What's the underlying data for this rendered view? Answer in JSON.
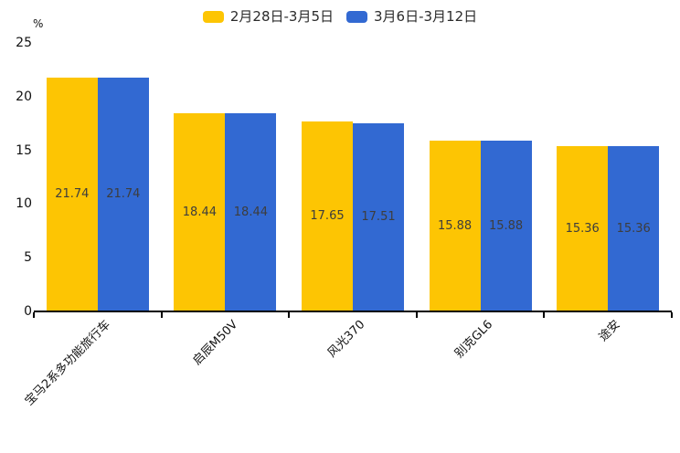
{
  "chart": {
    "unit_label": "%"
  },
  "chart_data": {
    "type": "bar",
    "title": "",
    "categories": [
      "宝马2系多功能旅行车",
      "启辰M50V",
      "风光370",
      "别克GL6",
      "途安"
    ],
    "series": [
      {
        "name": "2月28日-3月5日",
        "color": "#FDC503",
        "values": [
          21.74,
          18.44,
          17.65,
          15.88,
          15.36
        ]
      },
      {
        "name": "3月6日-3月12日",
        "color": "#3269D2",
        "values": [
          21.74,
          18.44,
          17.51,
          15.88,
          15.36
        ]
      }
    ],
    "xlabel": "",
    "ylabel": "%",
    "ylim": [
      0,
      25
    ],
    "yticks": [
      0,
      5,
      10,
      15,
      20,
      25
    ],
    "grid": false,
    "legend_position": "top-center",
    "value_labels": "inside-center",
    "value_label_color": "#3d3d3d",
    "bar_label_format": "2-decimals",
    "axis_color": "#000000",
    "background_color": "#ffffff"
  }
}
